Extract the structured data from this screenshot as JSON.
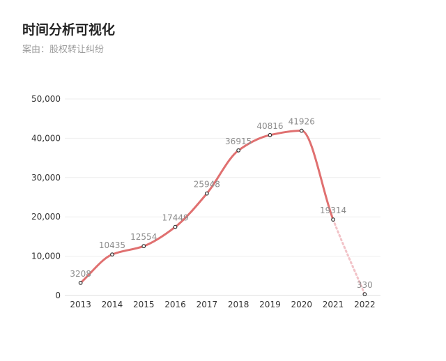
{
  "header": {
    "title": "时间分析可视化",
    "subtitle": "案由：股权转让纠纷"
  },
  "chart_data": {
    "type": "line",
    "categories": [
      "2013",
      "2014",
      "2015",
      "2016",
      "2017",
      "2018",
      "2019",
      "2020",
      "2021",
      "2022"
    ],
    "values": [
      3208,
      10435,
      12554,
      17449,
      25948,
      36915,
      40816,
      41926,
      19314,
      330
    ],
    "data_labels": [
      "3208",
      "10435",
      "12554",
      "17449",
      "25948",
      "36915",
      "40816",
      "41926",
      "19314",
      "330"
    ],
    "yticks": [
      "0",
      "10,000",
      "20,000",
      "30,000",
      "40,000",
      "50,000"
    ],
    "ylim": [
      0,
      50000
    ],
    "smooth": true,
    "dashed_last_segment": true,
    "grid": true,
    "colors": {
      "line": "#e07070",
      "dashed": "#f2c3c8",
      "marker": "#333333"
    }
  }
}
